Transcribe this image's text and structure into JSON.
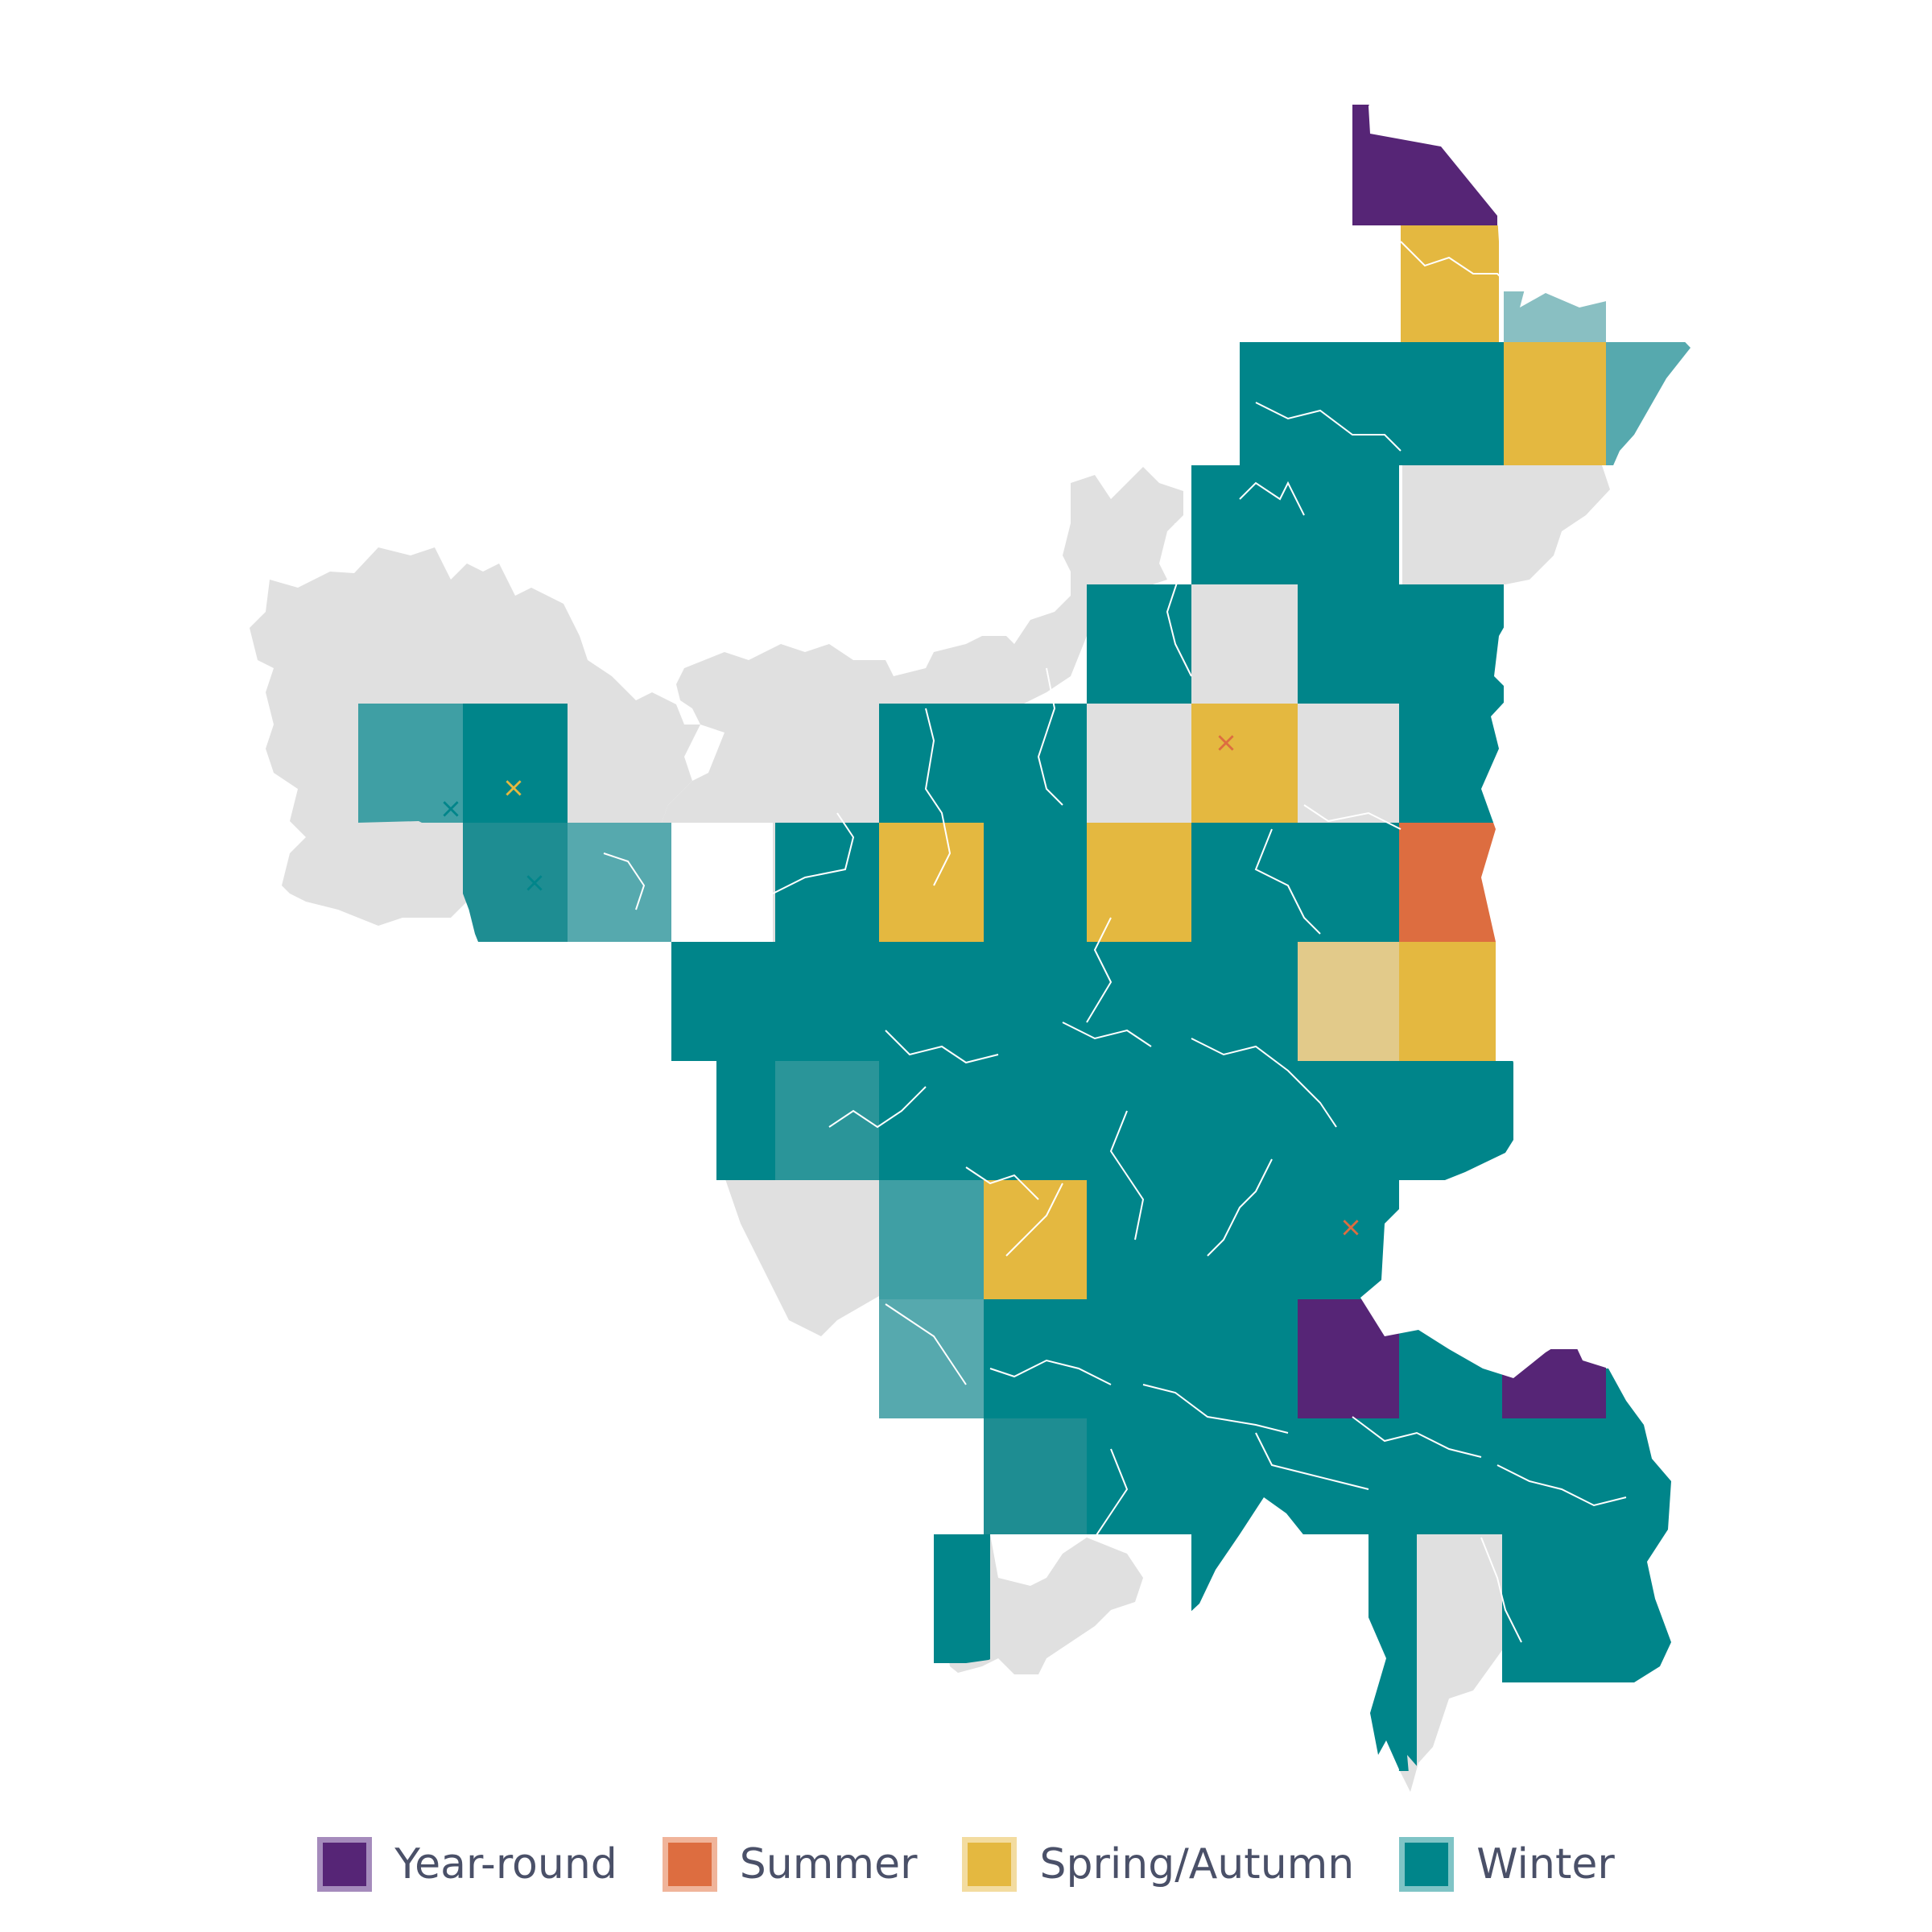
{
  "map": {
    "season_colors": {
      "year_round": "#562576",
      "summer": "#dd6d40",
      "spring_autumn": "#e4b840",
      "winter": "#00858a",
      "no_data": "#e0e0e0",
      "district_border": "#ffffff"
    },
    "markers": [
      {
        "season": "spring_autumn",
        "symbol": "×"
      },
      {
        "season": "winter",
        "symbol": "×"
      },
      {
        "season": "winter",
        "symbol": "×"
      },
      {
        "season": "summer",
        "symbol": "×"
      },
      {
        "season": "summer",
        "symbol": "×"
      }
    ]
  },
  "legend": {
    "items": [
      {
        "key": "year_round",
        "label": "Year-round",
        "fill": "#562576",
        "border": "#a58bbc"
      },
      {
        "key": "summer",
        "label": "Summer",
        "fill": "#dd6d40",
        "border": "#f0b49a"
      },
      {
        "key": "spring_autumn",
        "label": "Spring/Autumn",
        "fill": "#e4b840",
        "border": "#f3dca0"
      },
      {
        "key": "winter",
        "label": "Winter",
        "fill": "#00858a",
        "border": "#7fc4c6"
      }
    ]
  }
}
